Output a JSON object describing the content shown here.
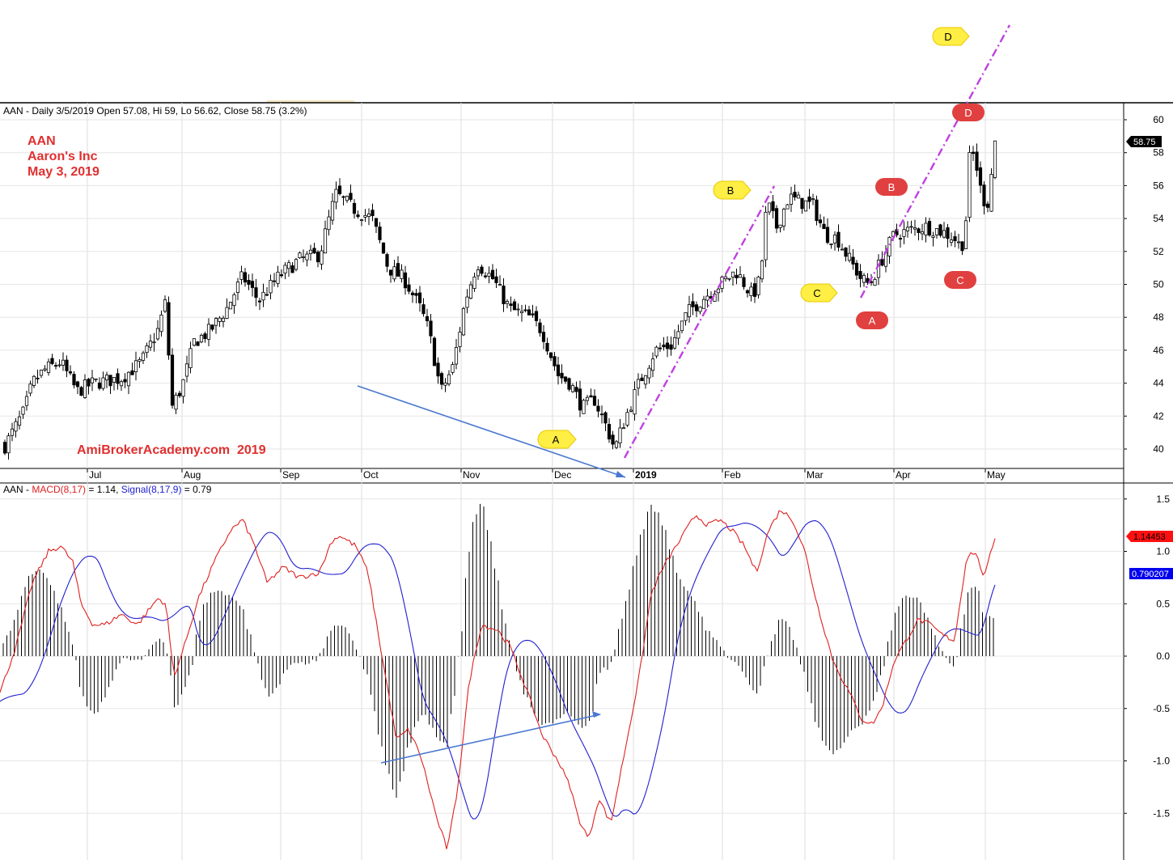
{
  "header": {
    "price_prefix": "AAN - Daily 3/5/2019 Open 57.08, Hi 59, Lo 56.62, Close 58.75 (3.2%)",
    "macd_prefix": "AAN - ",
    "macd_name": "MACD(8,17)",
    "macd_eq": " = 1.14, ",
    "signal_name": "Signal(8,17,9)",
    "signal_eq": " = 0.79"
  },
  "annotation": {
    "ticker": "AAN",
    "company": "Aaron's Inc",
    "date": "May 3, 2019",
    "watermark": "AmiBrokerAcademy.com  2019"
  },
  "tags": {
    "last_price": "58.75",
    "macd_value": "1.14453",
    "signal_value": "0.790207"
  },
  "colors": {
    "macd": "#e02020",
    "signal": "#2020d0",
    "trend_blue": "#4a78d0",
    "channel_purple": "#c040e0",
    "yellow_label": "#ffee44",
    "red_label": "#e04040",
    "header_strip": "#f5e6c0"
  },
  "chart_data": [
    {
      "type": "candlestick",
      "ticker": "AAN",
      "x_labels": [
        "Jul",
        "Aug",
        "Sep",
        "Oct",
        "Nov",
        "Dec",
        "2019",
        "Feb",
        "Mar",
        "Apr",
        "May"
      ],
      "y_ticks": [
        40,
        42,
        44,
        46,
        48,
        50,
        52,
        54,
        56,
        58,
        60
      ],
      "ylim": [
        38.8,
        61
      ],
      "approx_close_path": [
        {
          "month": "mid-Jun 2018",
          "close": 40.2
        },
        {
          "month": "early Jul",
          "close": 44.8
        },
        {
          "month": "late Jul",
          "close": 48.0
        },
        {
          "month": "early Aug",
          "close": 42.5
        },
        {
          "month": "mid Sep",
          "close": 51.8
        },
        {
          "month": "late Sep",
          "close": 55.5
        },
        {
          "month": "late Oct",
          "close": 43.5
        },
        {
          "month": "early Nov",
          "close": 49.5
        },
        {
          "month": "mid Nov",
          "close": 50.8
        },
        {
          "month": "late Dec",
          "close": 40.0
        },
        {
          "month": "early Feb 2019",
          "close": 50.5
        },
        {
          "month": "late Feb",
          "close": 55.5
        },
        {
          "month": "late Mar",
          "close": 50.0
        },
        {
          "month": "mid Apr",
          "close": 53.2
        },
        {
          "month": "late Apr",
          "close": 59.0
        },
        {
          "month": "early May",
          "close": 58.75
        }
      ],
      "pattern_labels": {
        "yellow": [
          "A",
          "B",
          "C",
          "D"
        ],
        "red": [
          "A",
          "B",
          "C",
          "D"
        ]
      }
    },
    {
      "type": "line",
      "indicator": "MACD",
      "y_ticks": [
        -1.5,
        -1.0,
        -0.5,
        0.0,
        0.5,
        1.0,
        1.5
      ],
      "ylim": [
        -1.9,
        1.65
      ],
      "series": [
        {
          "name": "MACD(8,17)",
          "last": 1.14453
        },
        {
          "name": "Signal(8,17,9)",
          "last": 0.790207
        }
      ]
    }
  ]
}
